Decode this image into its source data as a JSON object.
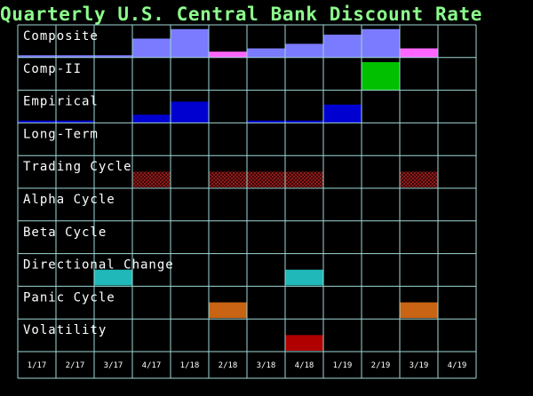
{
  "chart_data": {
    "type": "bar",
    "title": "Quarterly U.S. Central Bank Discount Rate",
    "categories": [
      "1/17",
      "2/17",
      "3/17",
      "4/17",
      "1/18",
      "2/18",
      "3/18",
      "4/18",
      "1/19",
      "2/19",
      "3/19",
      "4/19"
    ],
    "colors": {
      "background": "#000000",
      "grid": "#9fd7d7",
      "title": "#8cfc8c",
      "label": "#ffffff",
      "composite_up": "#7b7bff",
      "composite_down": "#ff66ff",
      "comp_ii": "#00c000",
      "empirical": "#0000d0",
      "trading_cycle": "#7a1010",
      "directional_change": "#20b8b8",
      "panic_cycle": "#c86414",
      "volatility": "#b00000"
    },
    "rows": [
      {
        "label": "Composite",
        "kind": "bar",
        "values": [
          0.07,
          0.07,
          0.07,
          0.58,
          0.87,
          0.18,
          0.28,
          0.42,
          0.7,
          0.87,
          0.28,
          0
        ],
        "styles": [
          "up",
          "up",
          "up",
          "up",
          "up",
          "down",
          "up",
          "up",
          "up",
          "up",
          "down",
          "none"
        ]
      },
      {
        "label": "Comp-II",
        "kind": "bar",
        "values": [
          0,
          0,
          0,
          0,
          0,
          0,
          0,
          0,
          0,
          0.86,
          0,
          0
        ],
        "styles": [
          "none",
          "none",
          "none",
          "none",
          "none",
          "none",
          "none",
          "none",
          "none",
          "up",
          "none",
          "none"
        ]
      },
      {
        "label": "Empirical",
        "kind": "bar",
        "values": [
          0.07,
          0.07,
          0,
          0.25,
          0.65,
          0,
          0.07,
          0.07,
          0.56,
          0,
          0,
          0
        ],
        "styles": [
          "up",
          "up",
          "none",
          "up",
          "up",
          "none",
          "up",
          "up",
          "up",
          "none",
          "none",
          "none"
        ]
      },
      {
        "label": "Long-Term",
        "kind": "bar",
        "values": [
          0,
          0,
          0,
          0,
          0,
          0,
          0,
          0,
          0,
          0,
          0,
          0
        ],
        "styles": [
          "none",
          "none",
          "none",
          "none",
          "none",
          "none",
          "none",
          "none",
          "none",
          "none",
          "none",
          "none"
        ]
      },
      {
        "label": "Trading Cycle",
        "kind": "flag",
        "flags": [
          0,
          0,
          0,
          1,
          0,
          1,
          1,
          1,
          0,
          0,
          1,
          0
        ]
      },
      {
        "label": "Alpha Cycle",
        "kind": "flag",
        "flags": [
          0,
          0,
          0,
          0,
          0,
          0,
          0,
          0,
          0,
          0,
          0,
          0
        ]
      },
      {
        "label": "Beta Cycle",
        "kind": "flag",
        "flags": [
          0,
          0,
          0,
          0,
          0,
          0,
          0,
          0,
          0,
          0,
          0,
          0
        ]
      },
      {
        "label": "Directional Change",
        "kind": "flag",
        "flags": [
          0,
          0,
          1,
          0,
          0,
          0,
          0,
          1,
          0,
          0,
          0,
          0
        ]
      },
      {
        "label": "Panic Cycle",
        "kind": "flag",
        "flags": [
          0,
          0,
          0,
          0,
          0,
          1,
          0,
          0,
          0,
          0,
          1,
          0
        ]
      },
      {
        "label": "Volatility",
        "kind": "flag",
        "flags": [
          0,
          0,
          0,
          0,
          0,
          0,
          0,
          1,
          0,
          0,
          0,
          0
        ]
      }
    ]
  }
}
